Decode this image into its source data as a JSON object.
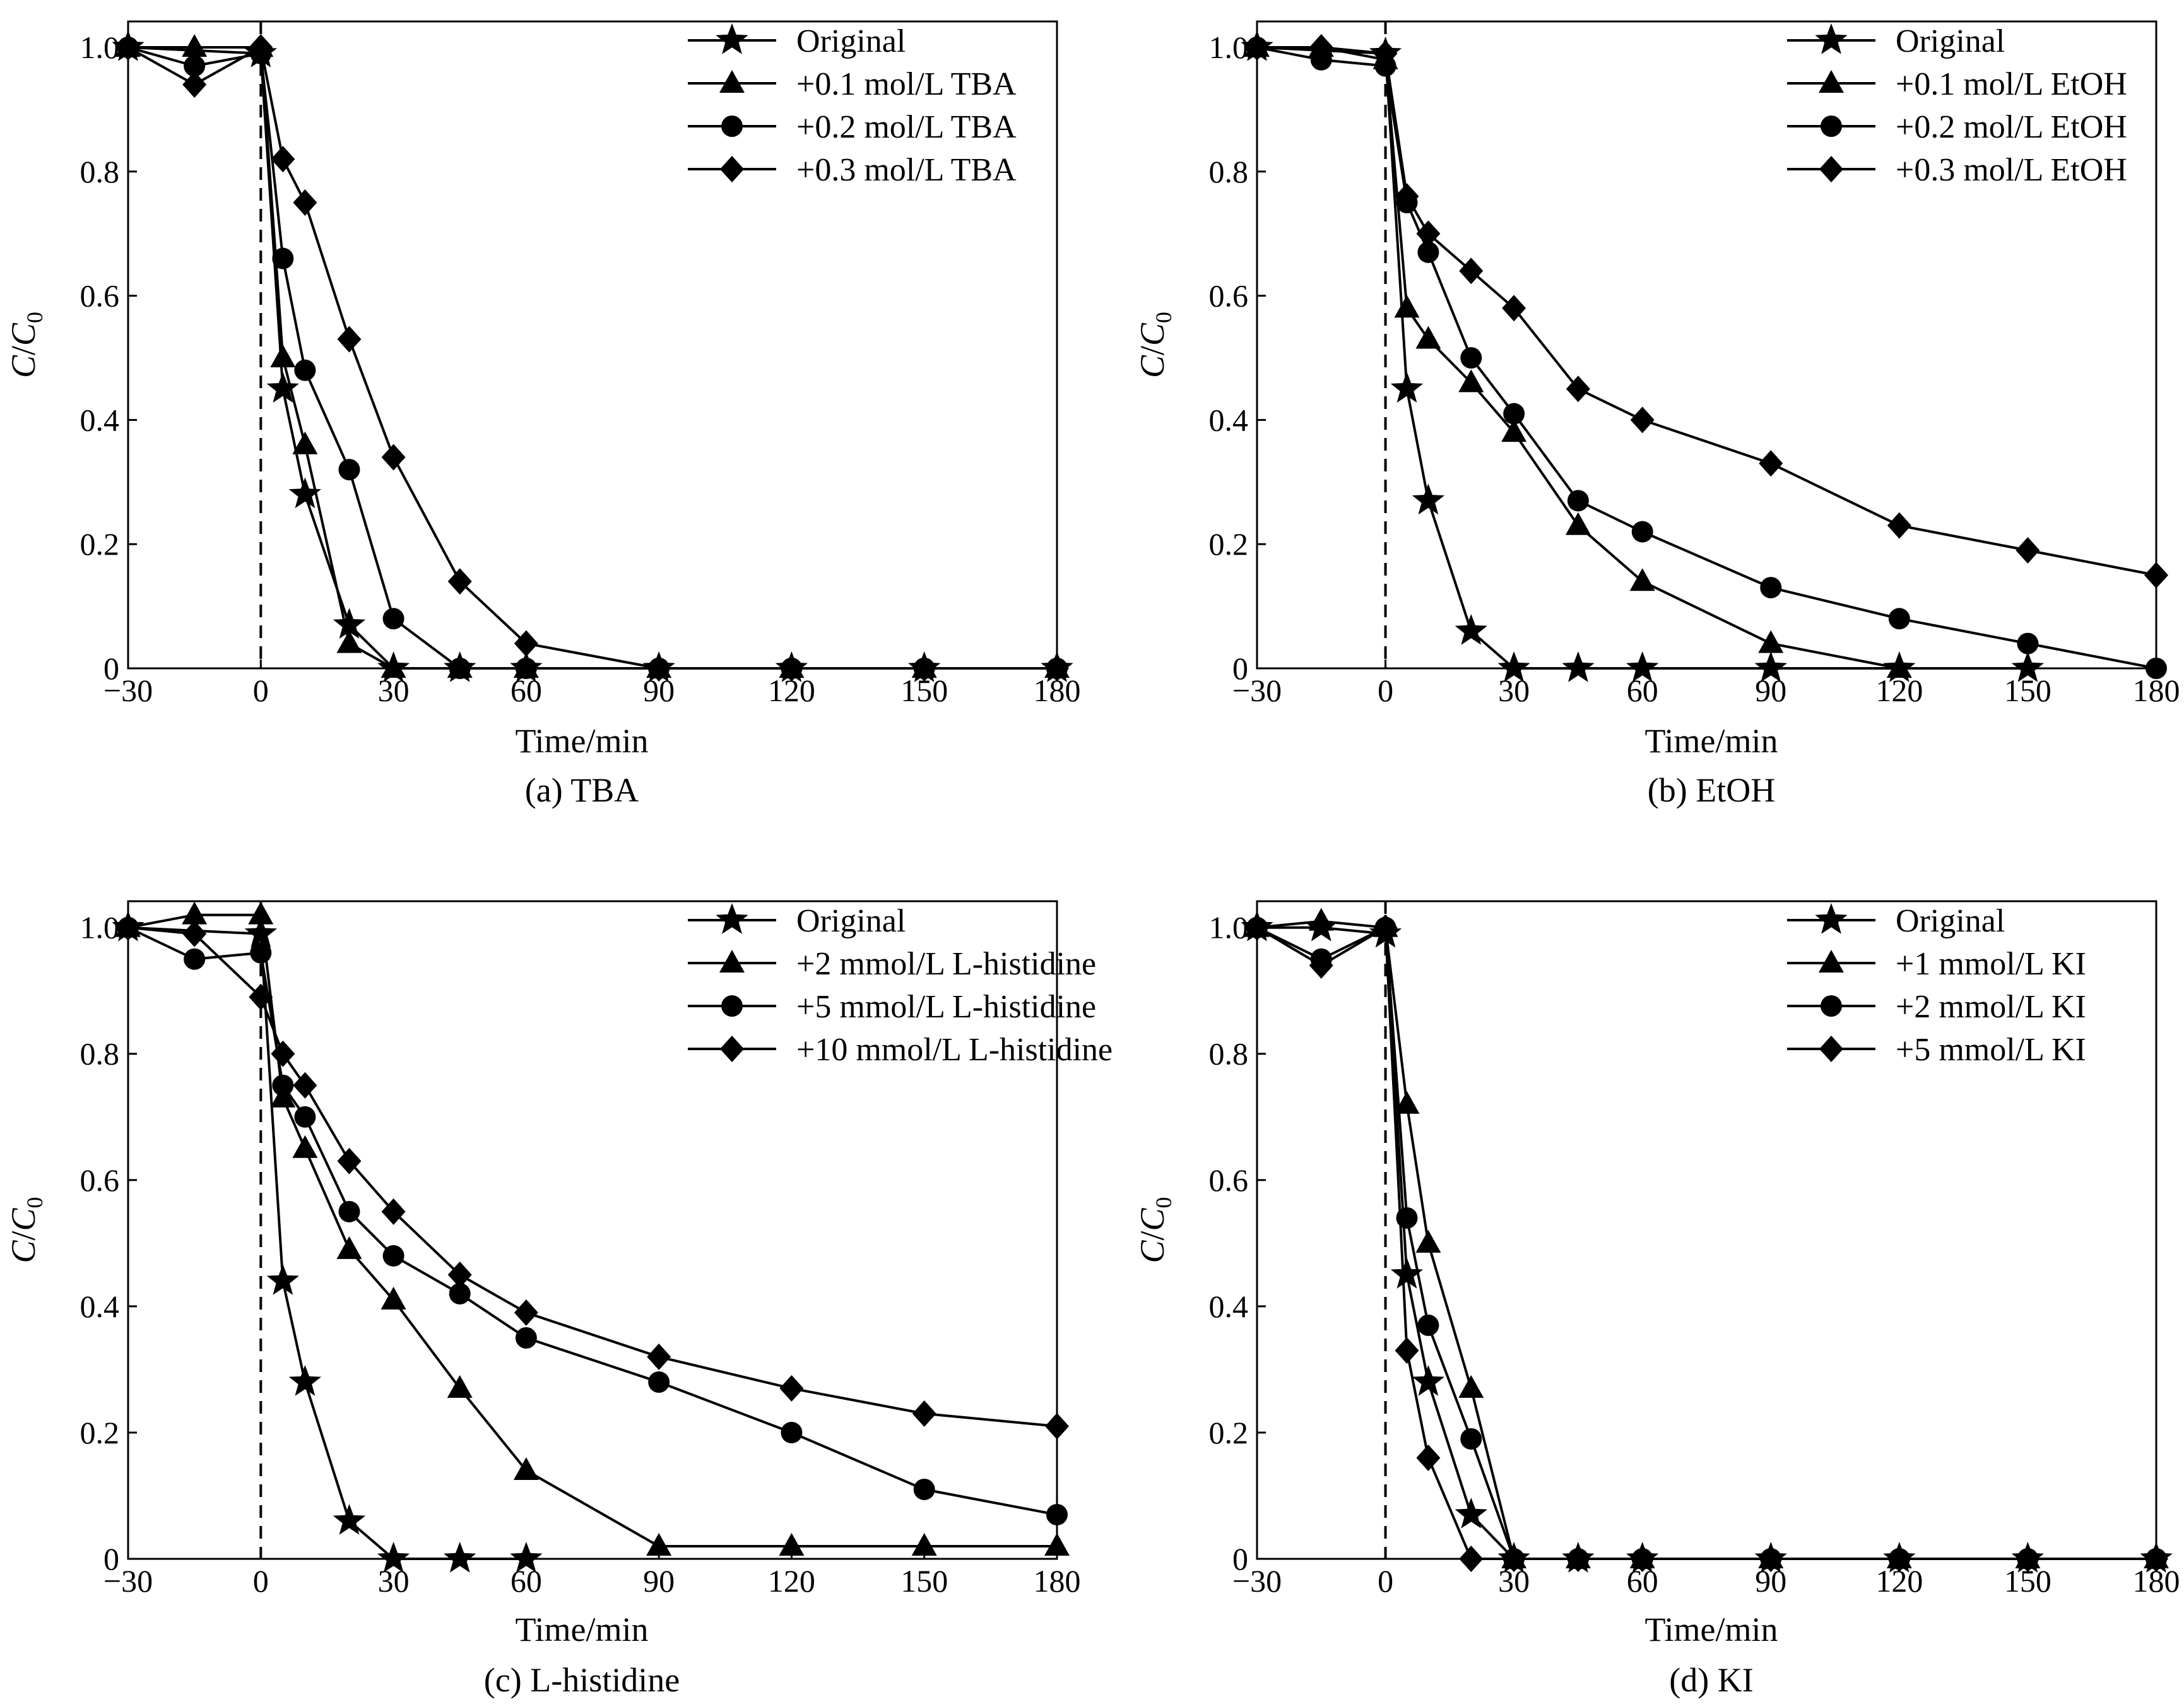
{
  "chart_data": [
    {
      "type": "line",
      "title": "(a) TBA",
      "xlabel": "Time/min",
      "ylabel": "C/C",
      "ylabel_sub": "0",
      "xlim": [
        -30,
        180
      ],
      "ylim": [
        0,
        1.0
      ],
      "xticks": [
        -30,
        0,
        30,
        60,
        90,
        120,
        150,
        180
      ],
      "xtick_labels": [
        "−30",
        "0",
        "30",
        "60",
        "90",
        "120",
        "150",
        "180"
      ],
      "yticks": [
        0,
        0.2,
        0.4,
        0.6,
        0.8,
        1.0
      ],
      "ytick_labels": [
        "0",
        "0.2",
        "0.4",
        "0.6",
        "0.8",
        "1.0"
      ],
      "vline_x": 0,
      "legend_position": "top-right",
      "series": [
        {
          "name": "Original",
          "marker": "star",
          "x": [
            -30,
            0,
            5,
            10,
            20,
            30,
            45,
            60,
            90,
            120,
            150,
            180
          ],
          "y": [
            1.0,
            0.99,
            0.45,
            0.28,
            0.07,
            0.0,
            0.0,
            0.0,
            0.0,
            0.0,
            0.0,
            0.0
          ]
        },
        {
          "name": "+0.1 mol/L TBA",
          "marker": "triangle",
          "x": [
            -30,
            -15,
            0,
            5,
            10,
            20,
            30,
            45,
            60,
            90,
            120,
            150,
            180
          ],
          "y": [
            1.0,
            1.0,
            1.0,
            0.5,
            0.36,
            0.04,
            0.0,
            0.0,
            0.0,
            0.0,
            0.0,
            0.0,
            0.0
          ]
        },
        {
          "name": "+0.2 mol/L TBA",
          "marker": "circle",
          "x": [
            -30,
            -15,
            0,
            5,
            10,
            20,
            30,
            45,
            60,
            90,
            120,
            150,
            180
          ],
          "y": [
            1.0,
            0.97,
            0.99,
            0.66,
            0.48,
            0.32,
            0.08,
            0.0,
            0.0,
            0.0,
            0.0,
            0.0,
            0.0
          ]
        },
        {
          "name": "+0.3 mol/L TBA",
          "marker": "diamond",
          "x": [
            -30,
            -15,
            0,
            5,
            10,
            20,
            30,
            45,
            60,
            90,
            120,
            150,
            180
          ],
          "y": [
            1.0,
            0.94,
            1.0,
            0.82,
            0.75,
            0.53,
            0.34,
            0.14,
            0.04,
            0.0,
            0.0,
            0.0,
            0.0
          ]
        }
      ]
    },
    {
      "type": "line",
      "title": "(b) EtOH",
      "xlabel": "Time/min",
      "ylabel": "C/C",
      "ylabel_sub": "0",
      "xlim": [
        -30,
        180
      ],
      "ylim": [
        0,
        1.0
      ],
      "xticks": [
        -30,
        0,
        30,
        60,
        90,
        120,
        150,
        180
      ],
      "xtick_labels": [
        "−30",
        "0",
        "30",
        "60",
        "90",
        "120",
        "150",
        "180"
      ],
      "yticks": [
        0,
        0.2,
        0.4,
        0.6,
        0.8,
        1.0
      ],
      "ytick_labels": [
        "0",
        "0.2",
        "0.4",
        "0.6",
        "0.8",
        "1.0"
      ],
      "vline_x": 0,
      "legend_position": "top-right",
      "series": [
        {
          "name": "Original",
          "marker": "star",
          "x": [
            -30,
            0,
            5,
            10,
            20,
            30,
            45,
            60,
            90,
            120,
            150
          ],
          "y": [
            1.0,
            0.99,
            0.45,
            0.27,
            0.06,
            0.0,
            0.0,
            0.0,
            0.0,
            0.0,
            0.0
          ]
        },
        {
          "name": "+0.1 mol/L EtOH",
          "marker": "triangle",
          "x": [
            -30,
            -15,
            0,
            5,
            10,
            20,
            30,
            45,
            60,
            90,
            120
          ],
          "y": [
            1.0,
            1.0,
            0.98,
            0.58,
            0.53,
            0.46,
            0.38,
            0.23,
            0.14,
            0.04,
            0.0
          ]
        },
        {
          "name": "+0.2 mol/L EtOH",
          "marker": "circle",
          "x": [
            -30,
            -15,
            0,
            5,
            10,
            20,
            30,
            45,
            60,
            90,
            120,
            150,
            180
          ],
          "y": [
            1.0,
            0.98,
            0.97,
            0.75,
            0.67,
            0.5,
            0.41,
            0.27,
            0.22,
            0.13,
            0.08,
            0.04,
            0.0
          ]
        },
        {
          "name": "+0.3 mol/L EtOH",
          "marker": "diamond",
          "x": [
            -30,
            -15,
            0,
            5,
            10,
            20,
            30,
            45,
            60,
            90,
            120,
            150,
            180
          ],
          "y": [
            1.0,
            1.0,
            0.99,
            0.76,
            0.7,
            0.64,
            0.58,
            0.45,
            0.4,
            0.33,
            0.23,
            0.19,
            0.15
          ]
        }
      ]
    },
    {
      "type": "line",
      "title": "(c) L-histidine",
      "xlabel": "Time/min",
      "ylabel": "C/C",
      "ylabel_sub": "0",
      "xlim": [
        -30,
        180
      ],
      "ylim": [
        0,
        1.0
      ],
      "xticks": [
        -30,
        0,
        30,
        60,
        90,
        120,
        150,
        180
      ],
      "xtick_labels": [
        "−30",
        "0",
        "30",
        "60",
        "90",
        "120",
        "150",
        "180"
      ],
      "yticks": [
        0,
        0.2,
        0.4,
        0.6,
        0.8,
        1.0
      ],
      "ytick_labels": [
        "0",
        "0.2",
        "0.4",
        "0.6",
        "0.8",
        "1.0"
      ],
      "vline_x": 0,
      "legend_position": "top-right",
      "series": [
        {
          "name": "Original",
          "marker": "star",
          "x": [
            -30,
            0,
            5,
            10,
            20,
            30,
            45,
            60
          ],
          "y": [
            1.0,
            0.99,
            0.44,
            0.28,
            0.06,
            0.0,
            0.0,
            0.0
          ]
        },
        {
          "name": "+2 mmol/L L-histidine",
          "marker": "triangle",
          "x": [
            -30,
            -15,
            0,
            5,
            10,
            20,
            30,
            45,
            60,
            90,
            120,
            150,
            180
          ],
          "y": [
            1.0,
            1.02,
            1.02,
            0.73,
            0.65,
            0.49,
            0.41,
            0.27,
            0.14,
            0.02,
            0.02,
            0.02,
            0.02
          ]
        },
        {
          "name": "+5 mmol/L L-histidine",
          "marker": "circle",
          "x": [
            -30,
            -15,
            0,
            5,
            10,
            20,
            30,
            45,
            60,
            90,
            120,
            150,
            180
          ],
          "y": [
            1.0,
            0.95,
            0.96,
            0.75,
            0.7,
            0.55,
            0.48,
            0.42,
            0.35,
            0.28,
            0.2,
            0.11,
            0.07
          ]
        },
        {
          "name": "+10 mmol/L L-histidine",
          "marker": "diamond",
          "x": [
            -30,
            -15,
            0,
            5,
            10,
            20,
            30,
            45,
            60,
            90,
            120,
            150,
            180
          ],
          "y": [
            1.0,
            0.99,
            0.89,
            0.8,
            0.75,
            0.63,
            0.55,
            0.45,
            0.39,
            0.32,
            0.27,
            0.23,
            0.21
          ]
        }
      ]
    },
    {
      "type": "line",
      "title": "(d) KI",
      "xlabel": "Time/min",
      "ylabel": "C/C",
      "ylabel_sub": "0",
      "xlim": [
        -30,
        180
      ],
      "ylim": [
        0,
        1.0
      ],
      "xticks": [
        -30,
        0,
        30,
        60,
        90,
        120,
        150,
        180
      ],
      "xtick_labels": [
        "−30",
        "0",
        "30",
        "60",
        "90",
        "120",
        "150",
        "180"
      ],
      "yticks": [
        0,
        0.2,
        0.4,
        0.6,
        0.8,
        1.0
      ],
      "ytick_labels": [
        "0",
        "0.2",
        "0.4",
        "0.6",
        "0.8",
        "1.0"
      ],
      "vline_x": 0,
      "legend_position": "top-right",
      "series": [
        {
          "name": "Original",
          "marker": "star",
          "x": [
            -30,
            -15,
            0,
            5,
            10,
            20,
            30,
            45,
            60,
            90,
            120,
            150,
            180
          ],
          "y": [
            1.0,
            1.0,
            0.99,
            0.45,
            0.28,
            0.07,
            0.0,
            0.0,
            0.0,
            0.0,
            0.0,
            0.0,
            0.0
          ]
        },
        {
          "name": "+1 mmol/L KI",
          "marker": "triangle",
          "x": [
            -30,
            -15,
            0,
            5,
            10,
            20,
            30,
            45,
            60,
            90,
            120,
            150,
            180
          ],
          "y": [
            1.0,
            1.01,
            1.0,
            0.72,
            0.5,
            0.27,
            0.0,
            0.0,
            0.0,
            0.0,
            0.0,
            0.0,
            0.0
          ]
        },
        {
          "name": "+2 mmol/L KI",
          "marker": "circle",
          "x": [
            -30,
            -15,
            0,
            5,
            10,
            20,
            30,
            45,
            60,
            90,
            120,
            150,
            180
          ],
          "y": [
            1.0,
            0.95,
            1.0,
            0.54,
            0.37,
            0.19,
            0.0,
            0.0,
            0.0,
            0.0,
            0.0,
            0.0,
            0.0
          ]
        },
        {
          "name": "+5 mmol/L KI",
          "marker": "diamond",
          "x": [
            -30,
            -15,
            0,
            5,
            10,
            20,
            30,
            45,
            60,
            90,
            120,
            150,
            180
          ],
          "y": [
            1.0,
            0.94,
            1.0,
            0.33,
            0.16,
            0.0,
            0.0,
            0.0,
            0.0,
            0.0,
            0.0,
            0.0,
            0.0
          ]
        }
      ]
    }
  ]
}
